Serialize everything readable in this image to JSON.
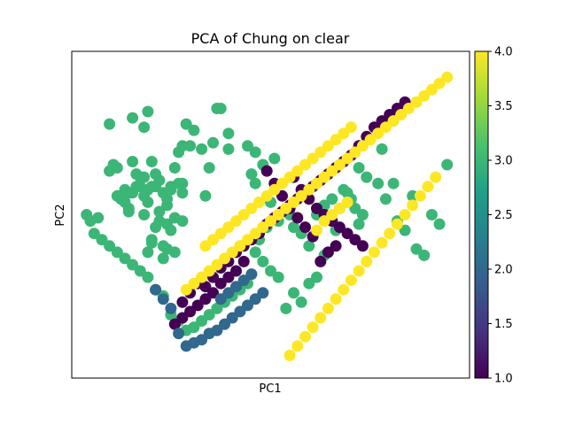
{
  "chart_data": {
    "type": "scatter",
    "title": "PCA of Chung on clear",
    "xlabel": "PC1",
    "ylabel": "PC2",
    "grid": false,
    "xlim": [
      0,
      100
    ],
    "ylim": [
      0,
      100
    ],
    "colorbar": {
      "colormap": "viridis",
      "range": [
        1.0,
        4.0
      ],
      "ticks": [
        "1.0",
        "1.5",
        "2.0",
        "2.5",
        "3.0",
        "3.5",
        "4.0"
      ],
      "stops": [
        "#440154",
        "#46327e",
        "#365c8d",
        "#277f8e",
        "#1fa187",
        "#4ac16d",
        "#a0da39",
        "#fde725"
      ]
    },
    "points": [
      [
        5,
        49,
        3
      ],
      [
        8,
        64,
        3
      ],
      [
        9,
        66,
        3
      ],
      [
        11,
        55,
        3
      ],
      [
        12,
        58,
        3
      ],
      [
        13,
        51,
        3
      ],
      [
        14,
        67,
        3
      ],
      [
        10,
        56,
        3
      ],
      [
        10,
        65,
        3
      ],
      [
        12,
        54,
        3
      ],
      [
        13,
        52,
        3
      ],
      [
        15,
        63,
        3
      ],
      [
        16,
        59,
        3
      ],
      [
        17,
        56,
        3
      ],
      [
        18,
        54,
        3
      ],
      [
        19,
        59,
        3
      ],
      [
        16,
        62,
        3
      ],
      [
        18,
        58,
        3
      ],
      [
        17,
        50,
        3
      ],
      [
        19,
        67,
        3
      ],
      [
        20,
        63,
        3
      ],
      [
        21,
        61,
        3
      ],
      [
        22,
        57,
        3
      ],
      [
        23,
        55,
        3
      ],
      [
        21,
        48,
        3
      ],
      [
        19,
        42,
        3
      ],
      [
        18,
        38,
        3
      ],
      [
        20,
        46,
        3
      ],
      [
        24,
        45,
        3
      ],
      [
        22,
        36,
        3
      ],
      [
        25,
        49,
        3
      ],
      [
        27,
        57,
        3
      ],
      [
        25,
        65,
        3
      ],
      [
        27,
        72,
        3
      ],
      [
        30,
        77,
        3
      ],
      [
        32,
        71,
        3
      ],
      [
        33,
        56,
        3
      ],
      [
        35,
        73,
        3
      ],
      [
        36,
        84,
        3
      ],
      [
        37,
        84,
        3
      ],
      [
        39,
        76,
        3
      ],
      [
        27,
        60,
        3
      ],
      [
        24,
        59,
        3
      ],
      [
        26,
        60,
        3
      ],
      [
        15,
        59,
        3
      ],
      [
        14,
        57,
        3
      ],
      [
        13,
        57,
        3
      ],
      [
        17,
        62,
        3
      ],
      [
        20,
        59,
        3
      ],
      [
        21,
        51,
        3
      ],
      [
        23,
        53,
        3
      ],
      [
        24,
        58,
        3
      ],
      [
        26,
        70,
        3
      ],
      [
        28,
        79,
        3
      ],
      [
        22,
        40,
        3
      ],
      [
        19,
        41,
        3
      ],
      [
        23,
        47,
        3
      ],
      [
        8,
        79,
        3
      ],
      [
        14,
        81,
        3
      ],
      [
        17,
        78,
        3
      ],
      [
        18,
        83,
        3
      ],
      [
        27,
        48,
        3
      ],
      [
        29,
        72,
        3
      ],
      [
        34,
        65,
        3
      ],
      [
        39,
        71,
        3
      ],
      [
        44,
        72,
        3
      ],
      [
        23,
        39,
        3
      ],
      [
        25,
        38,
        3
      ],
      [
        46,
        70,
        3
      ],
      [
        45,
        63,
        3
      ],
      [
        46,
        60,
        3
      ],
      [
        48,
        66,
        3
      ],
      [
        50,
        54,
        3
      ],
      [
        51,
        68,
        3
      ],
      [
        47,
        42,
        3
      ],
      [
        49,
        46,
        3
      ],
      [
        52,
        48,
        3
      ],
      [
        55,
        50,
        3
      ],
      [
        56,
        46,
        3
      ],
      [
        58,
        44,
        3
      ],
      [
        60,
        40,
        3
      ],
      [
        62,
        50,
        3
      ],
      [
        64,
        53,
        3
      ],
      [
        66,
        55,
        3
      ],
      [
        68,
        52,
        3
      ],
      [
        70,
        57,
        3
      ],
      [
        73,
        65,
        3
      ],
      [
        75,
        62,
        3
      ],
      [
        78,
        60,
        3
      ],
      [
        79,
        71,
        3
      ],
      [
        80,
        55,
        3
      ],
      [
        82,
        60,
        3
      ],
      [
        83,
        48,
        3
      ],
      [
        85,
        45,
        3
      ],
      [
        87,
        56,
        3
      ],
      [
        88,
        39,
        3
      ],
      [
        90,
        37,
        3
      ],
      [
        92,
        50,
        3
      ],
      [
        94,
        47,
        3
      ],
      [
        96,
        66,
        3
      ],
      [
        73,
        47,
        3
      ],
      [
        72,
        52,
        3
      ],
      [
        74,
        50,
        3
      ],
      [
        71,
        55,
        3
      ],
      [
        69,
        58,
        3
      ],
      [
        67,
        45,
        3
      ],
      [
        64,
        37,
        3
      ],
      [
        62,
        30,
        3
      ],
      [
        60,
        28,
        3
      ],
      [
        58,
        22,
        3
      ],
      [
        56,
        25,
        3
      ],
      [
        54,
        20,
        3
      ],
      [
        52,
        30,
        3
      ],
      [
        50,
        32,
        3
      ],
      [
        48,
        35,
        3
      ],
      [
        46,
        38,
        3
      ],
      [
        44,
        28,
        3
      ],
      [
        42,
        26,
        3
      ],
      [
        40,
        24,
        3
      ],
      [
        38,
        22,
        3
      ],
      [
        36,
        20,
        3
      ],
      [
        34,
        18,
        3
      ],
      [
        32,
        16,
        3
      ],
      [
        30,
        14,
        3
      ],
      [
        28,
        13,
        3
      ],
      [
        26,
        16,
        3
      ],
      [
        24,
        18,
        3
      ],
      [
        22,
        24,
        3
      ],
      [
        20,
        26,
        3
      ],
      [
        18,
        30,
        3
      ],
      [
        16,
        32,
        3
      ],
      [
        14,
        34,
        3
      ],
      [
        12,
        36,
        3
      ],
      [
        10,
        38,
        3
      ],
      [
        8,
        40,
        3
      ],
      [
        6,
        42,
        3
      ],
      [
        4,
        44,
        3
      ],
      [
        3,
        48,
        3
      ],
      [
        2,
        50,
        3
      ],
      [
        27,
        22,
        1
      ],
      [
        29,
        25,
        1
      ],
      [
        31,
        28,
        1
      ],
      [
        33,
        27,
        1
      ],
      [
        35,
        30,
        1
      ],
      [
        37,
        33,
        1
      ],
      [
        39,
        35,
        1
      ],
      [
        41,
        38,
        1
      ],
      [
        43,
        40,
        1
      ],
      [
        45,
        42,
        1
      ],
      [
        47,
        44,
        1
      ],
      [
        49,
        47,
        1
      ],
      [
        51,
        49,
        1
      ],
      [
        53,
        51,
        1
      ],
      [
        55,
        53,
        1
      ],
      [
        57,
        55,
        1
      ],
      [
        59,
        57,
        1
      ],
      [
        61,
        59,
        1
      ],
      [
        63,
        61,
        1
      ],
      [
        65,
        63,
        1
      ],
      [
        67,
        65,
        1
      ],
      [
        69,
        67,
        1
      ],
      [
        71,
        69,
        1
      ],
      [
        73,
        72,
        1
      ],
      [
        75,
        75,
        1
      ],
      [
        77,
        78,
        1
      ],
      [
        79,
        80,
        1
      ],
      [
        81,
        82,
        1
      ],
      [
        83,
        84,
        1
      ],
      [
        85,
        86,
        1
      ],
      [
        56,
        62,
        1
      ],
      [
        58,
        58,
        1
      ],
      [
        60,
        55,
        1
      ],
      [
        62,
        52,
        1
      ],
      [
        64,
        50,
        1
      ],
      [
        66,
        48,
        1
      ],
      [
        68,
        46,
        1
      ],
      [
        70,
        44,
        1
      ],
      [
        72,
        42,
        1
      ],
      [
        74,
        40,
        1
      ],
      [
        63,
        35,
        1
      ],
      [
        65,
        38,
        1
      ],
      [
        67,
        40,
        1
      ],
      [
        61,
        43,
        1
      ],
      [
        59,
        46,
        1
      ],
      [
        57,
        49,
        1
      ],
      [
        55,
        52,
        1
      ],
      [
        53,
        56,
        1
      ],
      [
        51,
        60,
        1
      ],
      [
        49,
        64,
        1
      ],
      [
        43,
        35,
        1
      ],
      [
        41,
        32,
        1
      ],
      [
        39,
        30,
        1
      ],
      [
        37,
        28,
        1
      ],
      [
        35,
        25,
        1
      ],
      [
        33,
        23,
        1
      ],
      [
        31,
        21,
        1
      ],
      [
        29,
        19,
        1
      ],
      [
        27,
        17,
        1
      ],
      [
        25,
        15,
        1
      ],
      [
        48,
        25,
        2
      ],
      [
        46,
        23,
        2
      ],
      [
        44,
        21,
        2
      ],
      [
        42,
        19,
        2
      ],
      [
        40,
        17,
        2
      ],
      [
        38,
        15,
        2
      ],
      [
        36,
        13,
        2
      ],
      [
        34,
        12,
        2
      ],
      [
        32,
        10,
        2
      ],
      [
        30,
        9,
        2
      ],
      [
        28,
        8,
        2
      ],
      [
        26,
        12,
        2
      ],
      [
        24,
        20,
        2
      ],
      [
        22,
        23,
        2
      ],
      [
        20,
        26,
        2
      ],
      [
        37,
        23,
        2
      ],
      [
        39,
        25,
        2
      ],
      [
        41,
        27,
        2
      ],
      [
        43,
        29,
        2
      ],
      [
        45,
        31,
        2
      ],
      [
        28,
        26,
        4
      ],
      [
        30,
        28,
        4
      ],
      [
        32,
        30,
        4
      ],
      [
        34,
        32,
        4
      ],
      [
        36,
        34,
        4
      ],
      [
        38,
        36,
        4
      ],
      [
        40,
        38,
        4
      ],
      [
        42,
        40,
        4
      ],
      [
        44,
        42,
        4
      ],
      [
        46,
        44,
        4
      ],
      [
        48,
        46,
        4
      ],
      [
        50,
        48,
        4
      ],
      [
        52,
        50,
        4
      ],
      [
        54,
        52,
        4
      ],
      [
        56,
        54,
        4
      ],
      [
        58,
        56,
        4
      ],
      [
        60,
        58,
        4
      ],
      [
        62,
        60,
        4
      ],
      [
        64,
        62,
        4
      ],
      [
        66,
        64,
        4
      ],
      [
        68,
        66,
        4
      ],
      [
        70,
        68,
        4
      ],
      [
        72,
        70,
        4
      ],
      [
        74,
        72,
        4
      ],
      [
        76,
        74,
        4
      ],
      [
        78,
        76,
        4
      ],
      [
        80,
        78,
        4
      ],
      [
        82,
        80,
        4
      ],
      [
        84,
        82,
        4
      ],
      [
        86,
        84,
        4
      ],
      [
        88,
        86,
        4
      ],
      [
        90,
        88,
        4
      ],
      [
        92,
        90,
        4
      ],
      [
        94,
        92,
        4
      ],
      [
        96,
        94,
        4
      ],
      [
        62,
        45,
        4
      ],
      [
        64,
        48,
        4
      ],
      [
        66,
        50,
        4
      ],
      [
        68,
        52,
        4
      ],
      [
        70,
        54,
        4
      ],
      [
        33,
        40,
        4
      ],
      [
        35,
        42,
        4
      ],
      [
        37,
        44,
        4
      ],
      [
        39,
        46,
        4
      ],
      [
        41,
        48,
        4
      ],
      [
        43,
        50,
        4
      ],
      [
        45,
        52,
        4
      ],
      [
        47,
        54,
        4
      ],
      [
        49,
        56,
        4
      ],
      [
        51,
        58,
        4
      ],
      [
        53,
        60,
        4
      ],
      [
        55,
        62,
        4
      ],
      [
        57,
        64,
        4
      ],
      [
        59,
        66,
        4
      ],
      [
        61,
        68,
        4
      ],
      [
        63,
        70,
        4
      ],
      [
        65,
        72,
        4
      ],
      [
        67,
        74,
        4
      ],
      [
        69,
        76,
        4
      ],
      [
        71,
        78,
        4
      ],
      [
        55,
        5,
        4
      ],
      [
        57,
        8,
        4
      ],
      [
        59,
        11,
        4
      ],
      [
        61,
        14,
        4
      ],
      [
        63,
        17,
        4
      ],
      [
        65,
        20,
        4
      ],
      [
        67,
        23,
        4
      ],
      [
        69,
        26,
        4
      ],
      [
        71,
        29,
        4
      ],
      [
        73,
        32,
        4
      ],
      [
        75,
        35,
        4
      ],
      [
        77,
        38,
        4
      ],
      [
        79,
        41,
        4
      ],
      [
        81,
        44,
        4
      ],
      [
        83,
        47,
        4
      ],
      [
        85,
        50,
        4
      ],
      [
        87,
        53,
        4
      ],
      [
        89,
        56,
        4
      ],
      [
        91,
        59,
        4
      ],
      [
        93,
        62,
        4
      ]
    ]
  }
}
